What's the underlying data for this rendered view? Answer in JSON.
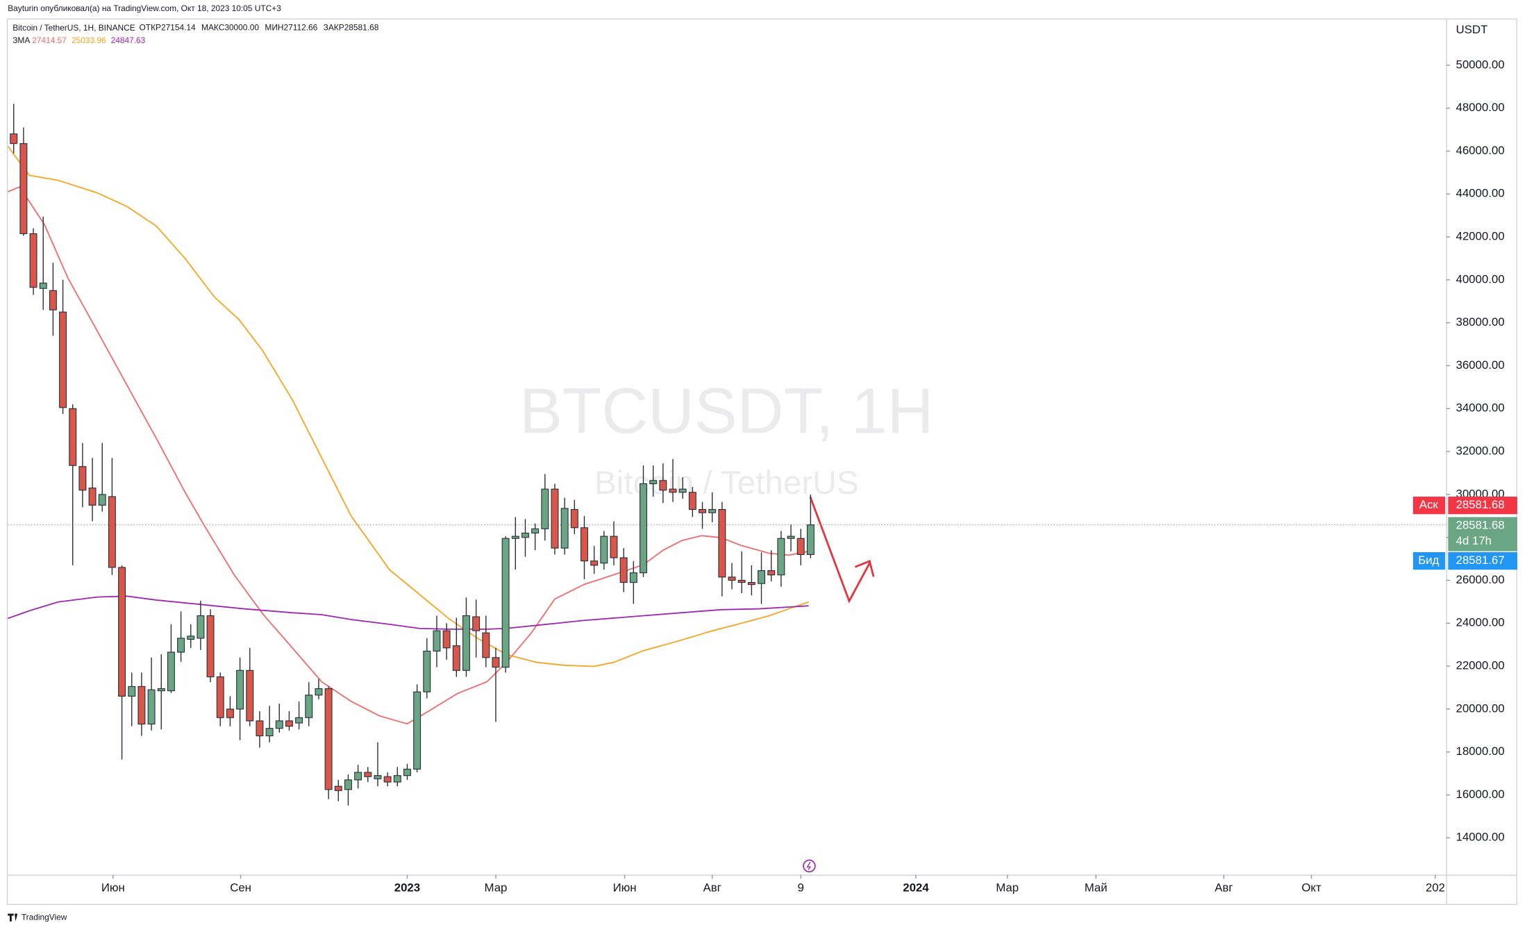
{
  "header": {
    "publisher": "Bayturin опубликовал(а) на TradingView.com, Окт 18, 2023 10:05 UTC+3",
    "footer": "TradingView"
  },
  "chart_data": {
    "type": "candlestick",
    "symbol_line": "Bitcoin / TetherUS, 1H, BINANCE",
    "ohlc_legend": [
      {
        "label": "ОТКР",
        "value": "27154.14"
      },
      {
        "label": "МАКС",
        "value": "30000.00"
      },
      {
        "label": "МИН",
        "value": "27112.66"
      },
      {
        "label": "ЗАКР",
        "value": "28581.68"
      }
    ],
    "indicator_name": "ЗМА",
    "watermark": "BTCUSDT, 1H",
    "watermark_subtitle": "Bitcoin / TetherUS",
    "currency": "USDT",
    "up_color": "#6aa584",
    "down_color": "#d9574a",
    "x": [
      0,
      1,
      2,
      3,
      4,
      5,
      6,
      7,
      8,
      9,
      10,
      11,
      12,
      13,
      14,
      15,
      16,
      17,
      18,
      19,
      20,
      21,
      22,
      23,
      24,
      25,
      26,
      27,
      28,
      29,
      30,
      31,
      32,
      33,
      34,
      35,
      36,
      37,
      38,
      39,
      40,
      41,
      42,
      43,
      44,
      45,
      46,
      47,
      48,
      49,
      50,
      51,
      52,
      53,
      54,
      55,
      56,
      57,
      58,
      59,
      60,
      61,
      62,
      63,
      64,
      65,
      66,
      67,
      68,
      69,
      70,
      71,
      72,
      73,
      74,
      75,
      76,
      77,
      78,
      79,
      80,
      81
    ],
    "open": [
      46800,
      46350,
      42150,
      39600,
      39500,
      38500,
      34000,
      31300,
      30300,
      29500,
      29900,
      26600,
      20600,
      21050,
      19300,
      20850,
      20850,
      22650,
      23250,
      23300,
      24350,
      21500,
      20000,
      20000,
      21800,
      19450,
      18750,
      19100,
      19450,
      19350,
      19600,
      20650,
      20950,
      16400,
      16250,
      16700,
      17050,
      16750,
      16850,
      16600,
      16900,
      17200,
      20800,
      22700,
      23650,
      22950,
      21800,
      24300,
      23550,
      22400,
      21950,
      27950,
      28000,
      28200,
      28400,
      30250,
      27500,
      29300,
      28450,
      26900,
      26800,
      28050,
      27050,
      25900,
      26350,
      30500,
      30650,
      30250,
      30100,
      30100,
      29300,
      29150,
      29300,
      26150,
      26000,
      25900,
      25850,
      26450,
      26250,
      27950,
      27950,
      27200
    ],
    "high": [
      48200,
      47100,
      42400,
      42950,
      40800,
      40000,
      34200,
      32400,
      31700,
      32400,
      31700,
      26700,
      21700,
      21700,
      22400,
      22550,
      23950,
      24550,
      23950,
      25050,
      24650,
      21700,
      20600,
      22400,
      22850,
      19900,
      20150,
      20250,
      19900,
      20350,
      21250,
      21400,
      21050,
      16700,
      16950,
      17400,
      17300,
      18450,
      17050,
      17300,
      17450,
      21150,
      23300,
      24350,
      24000,
      24250,
      25200,
      25100,
      24350,
      22850,
      28050,
      28950,
      28850,
      28650,
      30950,
      30500,
      29850,
      29750,
      29000,
      27600,
      28300,
      28750,
      27500,
      26900,
      31350,
      31350,
      31450,
      31650,
      30800,
      30350,
      29650,
      30100,
      29650,
      26800,
      27350,
      26700,
      27300,
      27400,
      28300,
      28600,
      28400,
      30000
    ],
    "low": [
      45900,
      42050,
      39300,
      38600,
      37400,
      33750,
      26700,
      29400,
      28750,
      29200,
      26250,
      17650,
      19200,
      18750,
      19000,
      19050,
      20750,
      22200,
      22850,
      22750,
      21250,
      19200,
      19200,
      18550,
      19200,
      18200,
      18450,
      18900,
      19000,
      19050,
      19200,
      20450,
      15800,
      15700,
      15500,
      16300,
      16600,
      16400,
      16400,
      16400,
      16700,
      17050,
      20500,
      21950,
      22300,
      21500,
      21500,
      22400,
      21950,
      19400,
      21700,
      26500,
      27100,
      27400,
      27850,
      27200,
      27200,
      28150,
      26050,
      26300,
      26500,
      26700,
      25450,
      24900,
      26150,
      29900,
      29600,
      29650,
      29800,
      28950,
      28400,
      28700,
      25250,
      25580,
      25400,
      25300,
      24900,
      25950,
      25700,
      27350,
      26700,
      27030
    ],
    "close": [
      46350,
      42150,
      39650,
      39850,
      38600,
      34050,
      31350,
      30200,
      29500,
      30000,
      26600,
      20600,
      21050,
      19300,
      20900,
      20950,
      22650,
      23300,
      23400,
      24350,
      21500,
      19600,
      19600,
      21800,
      19450,
      18750,
      19100,
      19450,
      19200,
      19600,
      20650,
      20950,
      16250,
      16200,
      16700,
      17050,
      16850,
      16900,
      16600,
      16900,
      17200,
      20800,
      22700,
      23650,
      22850,
      21800,
      24350,
      23650,
      22400,
      21950,
      27950,
      28050,
      28200,
      28400,
      30250,
      27500,
      29350,
      28450,
      26900,
      26700,
      28050,
      27050,
      25900,
      26350,
      30500,
      30650,
      30200,
      30100,
      30250,
      29300,
      29150,
      29300,
      26150,
      26000,
      25900,
      25800,
      26450,
      26250,
      27950,
      28050,
      27200,
      28581.68
    ],
    "ma_lines": [
      {
        "color": "#f06b6b",
        "last_value": 27414.57,
        "x": [
          -0.6,
          0.6,
          3.1,
          5.5,
          8.5,
          11.5,
          14.5,
          17.4,
          19.4,
          22.4,
          25.3,
          28.3,
          31.3,
          34.3,
          37.2,
          40,
          42.2,
          45.1,
          48.1,
          50.1,
          52.6,
          55,
          58,
          61,
          64,
          66,
          67.9,
          69.9,
          71.9,
          73.9,
          76.8,
          78.8,
          80.8
        ],
        "values": [
          44100,
          44330,
          42600,
          40100,
          37610,
          35110,
          32620,
          30120,
          28530,
          26260,
          24440,
          22860,
          21270,
          20360,
          19680,
          19310,
          19910,
          20720,
          21270,
          22180,
          23540,
          25130,
          25810,
          26260,
          26720,
          27400,
          27850,
          28080,
          27990,
          27630,
          27260,
          27170,
          27350
        ]
      },
      {
        "color": "#f5a623",
        "last_value": 25033.96,
        "x": [
          -0.6,
          1.6,
          4.5,
          8.5,
          11.5,
          14.5,
          17.4,
          20.4,
          22.9,
          25.3,
          28.3,
          31.3,
          34.3,
          38.2,
          41.2,
          44.2,
          47.1,
          50.1,
          53.1,
          56,
          59,
          61,
          64,
          67.9,
          70.9,
          73.9,
          76.8,
          78.8,
          80.8
        ],
        "values": [
          46230,
          44870,
          44640,
          44050,
          43420,
          42510,
          41010,
          39200,
          38150,
          36700,
          34430,
          31710,
          28990,
          26490,
          25360,
          24220,
          23310,
          22540,
          22180,
          22040,
          21990,
          22180,
          22720,
          23220,
          23630,
          23990,
          24350,
          24670,
          24990
        ]
      },
      {
        "color": "#9c27b0",
        "last_value": 24847.63,
        "x": [
          -0.6,
          1.6,
          4.5,
          8.5,
          11.5,
          14.5,
          18.4,
          23.4,
          28.3,
          31.3,
          34.3,
          38.2,
          41.2,
          44.2,
          48.1,
          50.1,
          53.1,
          58,
          63,
          67.9,
          71.9,
          75.8,
          80.8
        ],
        "values": [
          24220,
          24580,
          24990,
          25220,
          25260,
          25080,
          24900,
          24670,
          24490,
          24400,
          24170,
          23950,
          23760,
          23720,
          23720,
          23760,
          23900,
          24130,
          24310,
          24490,
          24630,
          24670,
          24810
        ]
      }
    ],
    "last_price": 28581.68,
    "countdown": "4d 17h",
    "ask": {
      "label": "Аск",
      "value": 28581.68
    },
    "bid": {
      "label": "Бид",
      "value": 28581.67
    },
    "xlim": [
      -0.6,
      145.6
    ],
    "xticks": [
      {
        "value": 10.1,
        "label": "Июн"
      },
      {
        "value": 23.07,
        "label": "Сен"
      },
      {
        "value": 40,
        "label": "2023"
      },
      {
        "value": 49,
        "label": "Мар"
      },
      {
        "value": 62.1,
        "label": "Июн"
      },
      {
        "value": 71,
        "label": "Авг"
      },
      {
        "value": 80,
        "label": "9"
      },
      {
        "value": 91.7,
        "label": "2024"
      },
      {
        "value": 101,
        "label": "Мар"
      },
      {
        "value": 110,
        "label": "Май"
      },
      {
        "value": 123,
        "label": "Авг"
      },
      {
        "value": 131.9,
        "label": "Окт"
      },
      {
        "value": 144.5,
        "label": "202"
      }
    ],
    "ylim": [
      12280,
      52130
    ],
    "yticks": [
      {
        "value": 14000,
        "label": "14000.00"
      },
      {
        "value": 16000,
        "label": "16000.00"
      },
      {
        "value": 18000,
        "label": "18000.00"
      },
      {
        "value": 20000,
        "label": "20000.00"
      },
      {
        "value": 22000,
        "label": "22000.00"
      },
      {
        "value": 24000,
        "label": "24000.00"
      },
      {
        "value": 26000,
        "label": "26000.00"
      },
      {
        "value": 28000,
        "label": "28000.00"
      },
      {
        "value": 30000,
        "label": "30000.00"
      },
      {
        "value": 32000,
        "label": "32000.00"
      },
      {
        "value": 34000,
        "label": "34000.00"
      },
      {
        "value": 36000,
        "label": "36000.00"
      },
      {
        "value": 38000,
        "label": "38000.00"
      },
      {
        "value": 40000,
        "label": "40000.00"
      },
      {
        "value": 42000,
        "label": "42000.00"
      },
      {
        "value": 44000,
        "label": "44000.00"
      },
      {
        "value": 46000,
        "label": "46000.00"
      },
      {
        "value": 48000,
        "label": "48000.00"
      },
      {
        "value": 50000,
        "label": "50000.00"
      }
    ],
    "grid": false
  }
}
